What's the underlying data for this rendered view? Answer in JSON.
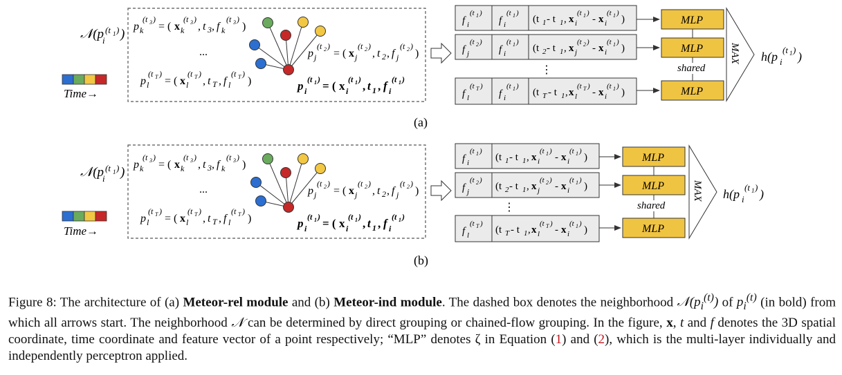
{
  "figure": {
    "panel_a_label": "(a)",
    "panel_b_label": "(b)",
    "time_label": "Time→",
    "neighborhood_symbol": "𝒩",
    "point_k": "p_k^(t3) = (x_k^(t3), t_3, f_k^(t3))",
    "point_j": "p_j^(t2) = (x_j^(t2), t_2, f_j^(t2))",
    "point_l": "p_l^(tT) = (x_l^(tT), t_T, f_l^(tT))",
    "point_i": "p_i^(t1) = (x_i^(t1), t_1, f_i^(t1))",
    "dots": "...",
    "vdots": "⋮",
    "mlp_label": "MLP",
    "shared_label": "shared",
    "max_label": "MAX",
    "output": "h(p_i^(t1))",
    "time_colors": [
      "#2c6fd1",
      "#6aab5e",
      "#f2c744",
      "#c62828"
    ],
    "mlp_color": "#f0c443"
  },
  "caption": {
    "p1": "Figure 8: The architecture of (a) ",
    "b1": "Meteor-rel module",
    "p2": " and (b) ",
    "b2": "Meteor-ind module",
    "p3": ". The dashed box denotes the neighborhood ",
    "p4": " of ",
    "p5": " (in bold) from which all arrows start. The neighborhood ",
    "p6": " can be determined by direct grouping or chained-flow grouping. In the figure, ",
    "p7": ", ",
    "p8": " and ",
    "p9": " denotes the 3D spatial coordinate, time coordinate and feature vector of a point respectively; “MLP” denotes ζ in Equation (",
    "ref1": "1",
    "p10": ") and (",
    "ref2": "2",
    "p11": "), which is the multi-layer individually and independently perceptron applied."
  }
}
